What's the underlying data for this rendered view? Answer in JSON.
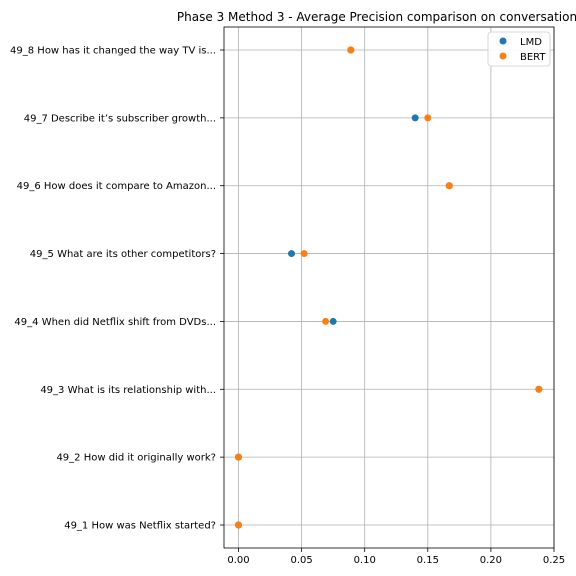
{
  "chart_data": {
    "type": "scatter",
    "title": "Phase 3 Method 3 - Average Precision comparison on conversation",
    "xlabel": "",
    "ylabel": "",
    "xlim": [
      -0.0115,
      0.25
    ],
    "xticks": [
      "0.00",
      "0.05",
      "0.10",
      "0.15",
      "0.20",
      "0.25"
    ],
    "xtick_values": [
      0,
      0.05,
      0.1,
      0.15,
      0.2,
      0.25
    ],
    "grid": true,
    "legend_position": "top-right",
    "categories": [
      "49_1 How was Netflix started?",
      "49_2 How did it originally work?",
      "49_3 What is its relationship with...",
      "49_4 When did Netflix shift from DVDs...",
      "49_5 What are its other competitors?",
      "49_6 How does it compare to Amazon...",
      "49_7 Describe it’s subscriber growth...",
      "49_8 How has it changed the way TV is..."
    ],
    "series": [
      {
        "name": "LMD",
        "color": "#1f77b4",
        "values": [
          0.0,
          0.0,
          0.238,
          0.075,
          0.042,
          0.167,
          0.14,
          0.089
        ]
      },
      {
        "name": "BERT",
        "color": "#ff7f0e",
        "values": [
          0.0,
          0.0,
          0.238,
          0.069,
          0.052,
          0.167,
          0.15,
          0.089
        ]
      }
    ]
  }
}
